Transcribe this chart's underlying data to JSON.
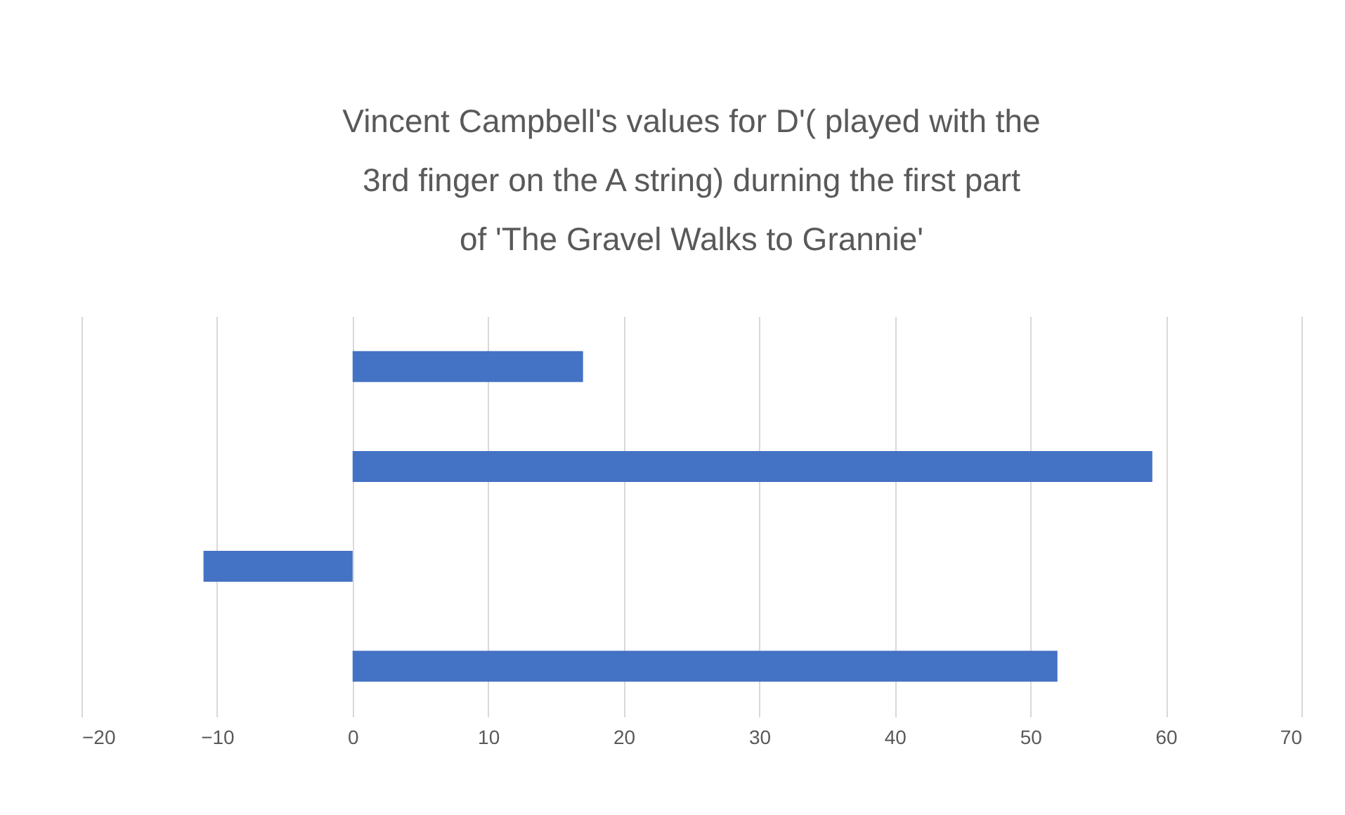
{
  "chart_data": {
    "type": "bar",
    "orientation": "horizontal",
    "title": "Vincent Campbell's  values for D'( played with the\n3rd finger on the A string) durning  the first part\nof 'The Gravel Walks to Grannie'",
    "categories": [
      null,
      null,
      null,
      null
    ],
    "values": [
      17,
      59,
      -11,
      52
    ],
    "color": "#4472c4",
    "xlim": [
      -20,
      70
    ],
    "xticks": [
      -20,
      -10,
      0,
      10,
      20,
      30,
      40,
      50,
      60,
      70
    ],
    "grid": "x"
  }
}
